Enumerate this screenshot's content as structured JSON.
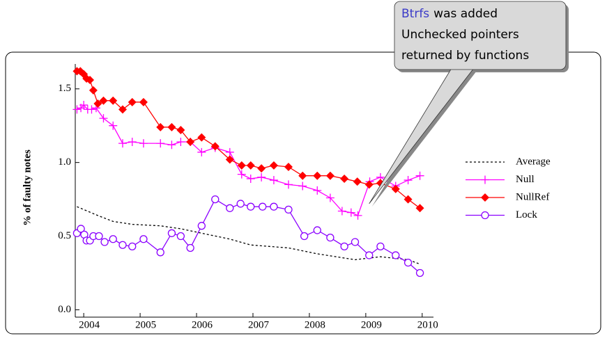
{
  "chart_data": {
    "type": "line",
    "ylabel": "% of faulty notes",
    "xlim": [
      2003.85,
      2010.2
    ],
    "ylim": [
      -0.05,
      1.65
    ],
    "xticks": [
      2004,
      2005,
      2006,
      2007,
      2008,
      2009,
      2010
    ],
    "yticks": [
      {
        "value": 0,
        "label": "0.0"
      },
      0.5,
      {
        "value": 1,
        "label": "1.0"
      },
      1.5
    ],
    "legend": "right",
    "annotation": {
      "highlight": "Btrfs",
      "lines": [
        "was added",
        "Unchecked pointers",
        "returned by functions"
      ],
      "x": 2009.06,
      "y": 0.72
    },
    "series": [
      {
        "name": "Average",
        "color": "#000000",
        "marker": "none",
        "linestyle": "dashed",
        "x": [
          2003.88,
          2004.25,
          2004.52,
          2004.86,
          2005.36,
          2005.72,
          2006.09,
          2006.59,
          2006.96,
          2007.63,
          2008.14,
          2008.81,
          2009.26,
          2009.75,
          2009.96
        ],
        "values": [
          0.7,
          0.64,
          0.6,
          0.58,
          0.57,
          0.55,
          0.52,
          0.48,
          0.44,
          0.42,
          0.38,
          0.34,
          0.36,
          0.34,
          0.31
        ]
      },
      {
        "name": "Null",
        "color": "#ff00ff",
        "marker": "plus",
        "linestyle": "solid",
        "x": [
          2003.88,
          2003.95,
          2004.0,
          2004.07,
          2004.14,
          2004.22,
          2004.35,
          2004.52,
          2004.69,
          2004.86,
          2005.06,
          2005.36,
          2005.56,
          2005.72,
          2005.89,
          2006.09,
          2006.33,
          2006.59,
          2006.8,
          2006.96,
          2007.15,
          2007.37,
          2007.63,
          2007.88,
          2008.14,
          2008.37,
          2008.58,
          2008.74,
          2008.86,
          2009.07,
          2009.26,
          2009.53,
          2009.75,
          2009.96
        ],
        "values": [
          1.36,
          1.37,
          1.39,
          1.36,
          1.36,
          1.37,
          1.3,
          1.25,
          1.13,
          1.14,
          1.13,
          1.13,
          1.12,
          1.14,
          1.14,
          1.07,
          1.1,
          1.07,
          0.92,
          0.89,
          0.9,
          0.88,
          0.85,
          0.84,
          0.81,
          0.76,
          0.67,
          0.66,
          0.64,
          0.87,
          0.9,
          0.84,
          0.88,
          0.91
        ]
      },
      {
        "name": "NullRef",
        "color": "#ff0000",
        "marker": "diamond",
        "linestyle": "solid",
        "x": [
          2003.88,
          2003.94,
          2004.0,
          2004.05,
          2004.11,
          2004.17,
          2004.25,
          2004.35,
          2004.52,
          2004.69,
          2004.86,
          2005.06,
          2005.36,
          2005.56,
          2005.72,
          2005.89,
          2006.09,
          2006.33,
          2006.59,
          2006.8,
          2006.96,
          2007.15,
          2007.37,
          2007.63,
          2007.88,
          2008.14,
          2008.37,
          2008.62,
          2008.85,
          2009.06,
          2009.26,
          2009.53,
          2009.75,
          2009.96
        ],
        "values": [
          1.62,
          1.62,
          1.6,
          1.57,
          1.56,
          1.49,
          1.4,
          1.42,
          1.42,
          1.36,
          1.41,
          1.41,
          1.24,
          1.24,
          1.22,
          1.14,
          1.17,
          1.11,
          1.02,
          0.98,
          0.98,
          0.96,
          0.98,
          0.97,
          0.91,
          0.91,
          0.91,
          0.89,
          0.87,
          0.85,
          0.86,
          0.82,
          0.75,
          0.69
        ]
      },
      {
        "name": "Lock",
        "color": "#8b00ff",
        "marker": "circle",
        "linestyle": "solid",
        "x": [
          2003.88,
          2003.95,
          2004.01,
          2004.05,
          2004.11,
          2004.17,
          2004.27,
          2004.37,
          2004.52,
          2004.69,
          2004.86,
          2005.06,
          2005.36,
          2005.56,
          2005.72,
          2005.89,
          2006.09,
          2006.33,
          2006.59,
          2006.78,
          2006.96,
          2007.17,
          2007.37,
          2007.63,
          2007.91,
          2008.14,
          2008.37,
          2008.62,
          2008.81,
          2009.06,
          2009.26,
          2009.53,
          2009.75,
          2009.96
        ],
        "values": [
          0.52,
          0.55,
          0.51,
          0.47,
          0.47,
          0.5,
          0.5,
          0.46,
          0.48,
          0.44,
          0.43,
          0.48,
          0.39,
          0.52,
          0.5,
          0.42,
          0.57,
          0.75,
          0.69,
          0.72,
          0.7,
          0.7,
          0.7,
          0.68,
          0.5,
          0.54,
          0.49,
          0.43,
          0.46,
          0.37,
          0.43,
          0.37,
          0.32,
          0.25
        ]
      }
    ]
  }
}
